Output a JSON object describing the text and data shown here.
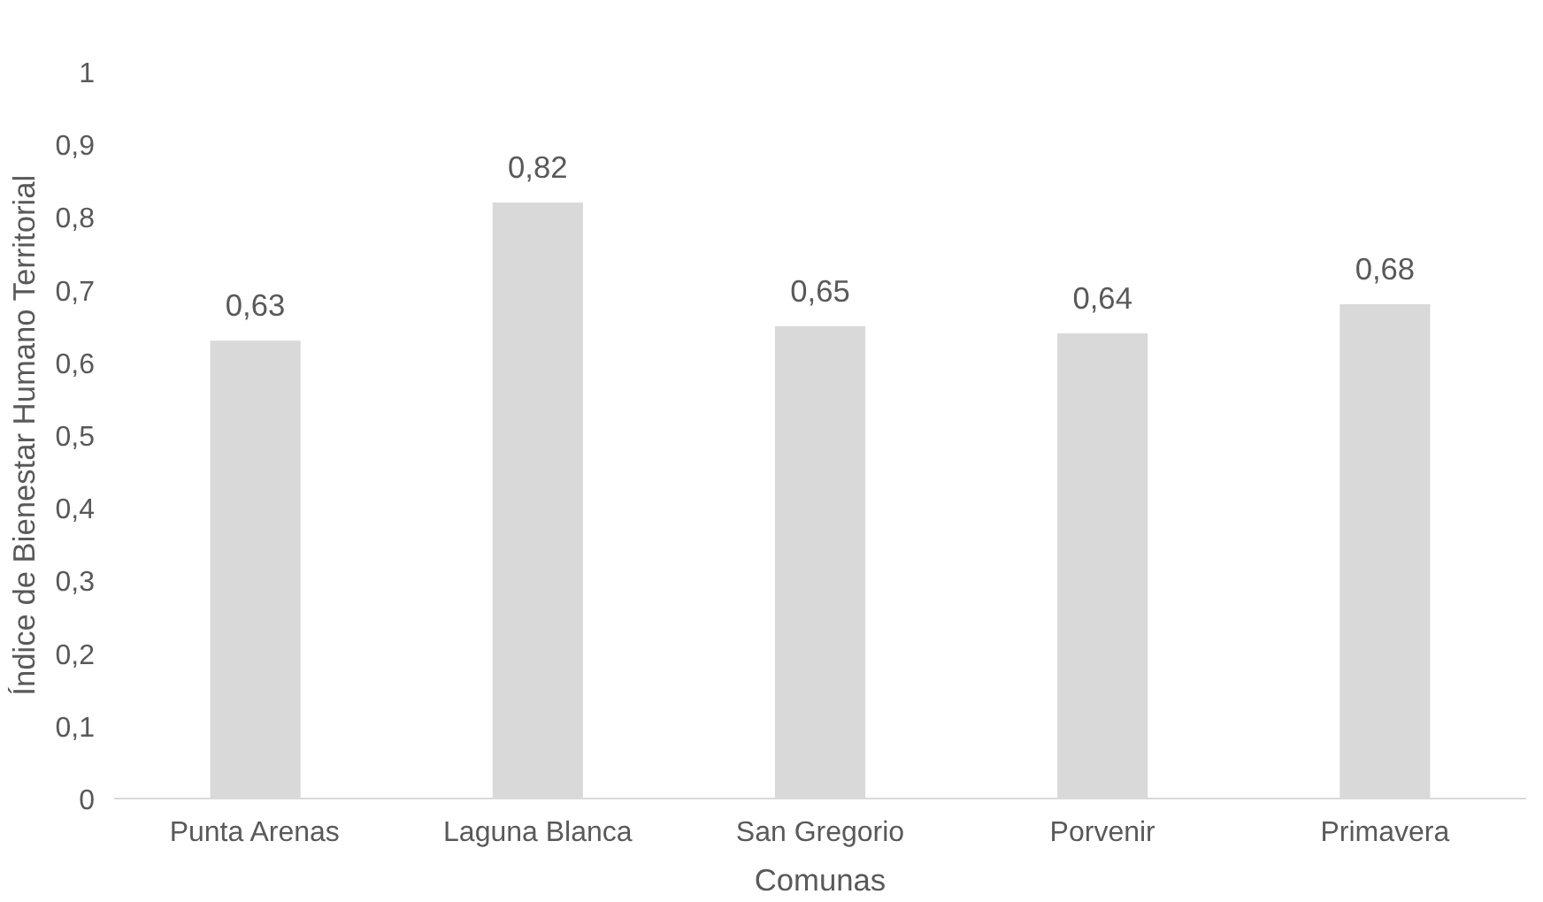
{
  "chart_data": {
    "type": "bar",
    "xlabel": "Comunas",
    "ylabel": "Índice de Bienestar Humano Territorial",
    "categories": [
      "Punta Arenas",
      "Laguna Blanca",
      "San Gregorio",
      "Porvenir",
      "Primavera"
    ],
    "values": [
      0.63,
      0.82,
      0.65,
      0.64,
      0.68
    ],
    "value_labels": [
      "0,63",
      "0,82",
      "0,65",
      "0,64",
      "0,68"
    ],
    "color": "#d9d9d9",
    "ylim": [
      0,
      1
    ],
    "yticks": [
      0,
      {
        "value": 0.1,
        "label": "0,1"
      },
      {
        "value": 0.2,
        "label": "0,2"
      },
      {
        "value": 0.3,
        "label": "0,3"
      },
      {
        "value": 0.4,
        "label": "0,4"
      },
      {
        "value": 0.5,
        "label": "0,5"
      },
      {
        "value": 0.6,
        "label": "0,6"
      },
      {
        "value": 0.7,
        "label": "0,7"
      },
      {
        "value": 0.8,
        "label": "0,8"
      },
      {
        "value": 0.9,
        "label": "0,9"
      },
      1
    ],
    "grid": false
  }
}
